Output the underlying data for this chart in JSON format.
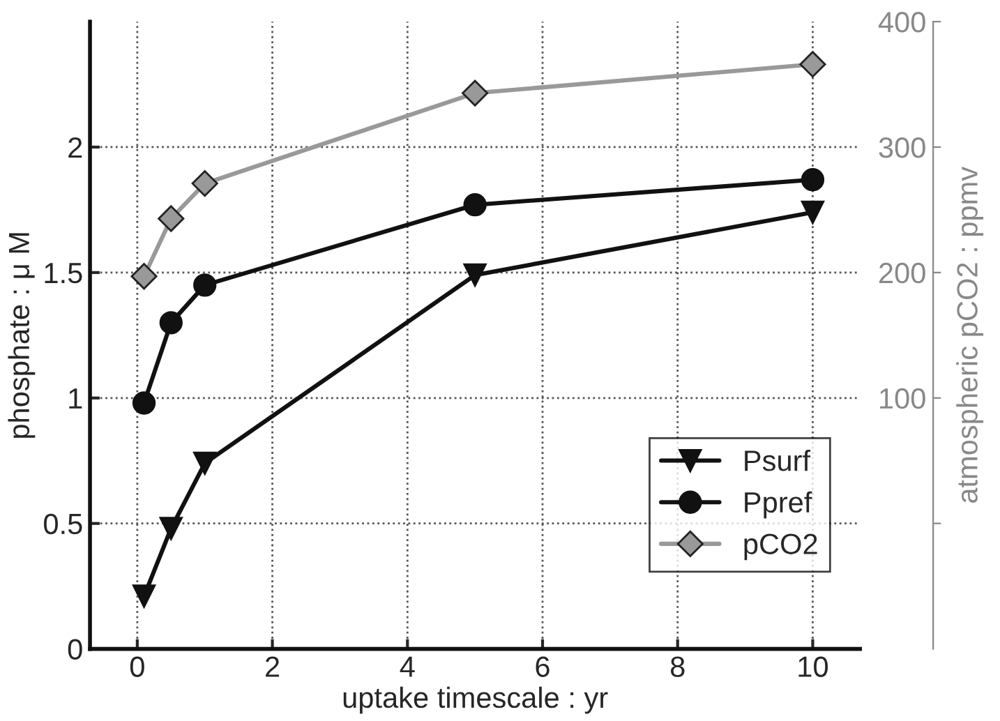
{
  "chart_data": {
    "type": "line",
    "xlabel": "uptake timescale : yr",
    "ylabel": "phosphate : μ M",
    "y2label": "atmospheric pCO2 : ppmv",
    "xlim": [
      -0.7,
      10.7
    ],
    "xticks": [
      0,
      2,
      4,
      6,
      8,
      10
    ],
    "ylim": [
      0,
      2.5
    ],
    "yticks": [
      0,
      0.5,
      1,
      1.5,
      2
    ],
    "y2lim": [
      -100,
      400
    ],
    "y2ticks": [
      {
        "value": 0,
        "label": null
      },
      100,
      200,
      300,
      400
    ],
    "grid": true,
    "legend": "bottom right",
    "line_style": "solid",
    "series": [
      {
        "name": "Psurf",
        "color": "#111111",
        "marker": "triangle",
        "x": [
          0.1,
          0.5,
          1,
          5,
          10
        ],
        "values": [
          0.21,
          0.48,
          0.74,
          1.49,
          1.74
        ]
      },
      {
        "name": "Ppref",
        "color": "#111111",
        "marker": "circle",
        "x": [
          0.1,
          0.5,
          1,
          5,
          10
        ],
        "values": [
          0.98,
          1.3,
          1.45,
          1.77,
          1.87
        ]
      },
      {
        "name": "pCO2",
        "color": "#999999",
        "marker": "diamond",
        "axis": "y2",
        "x": [
          0.1,
          0.5,
          1,
          5,
          10
        ],
        "values": [
          197,
          243,
          271,
          343,
          366
        ]
      }
    ]
  }
}
